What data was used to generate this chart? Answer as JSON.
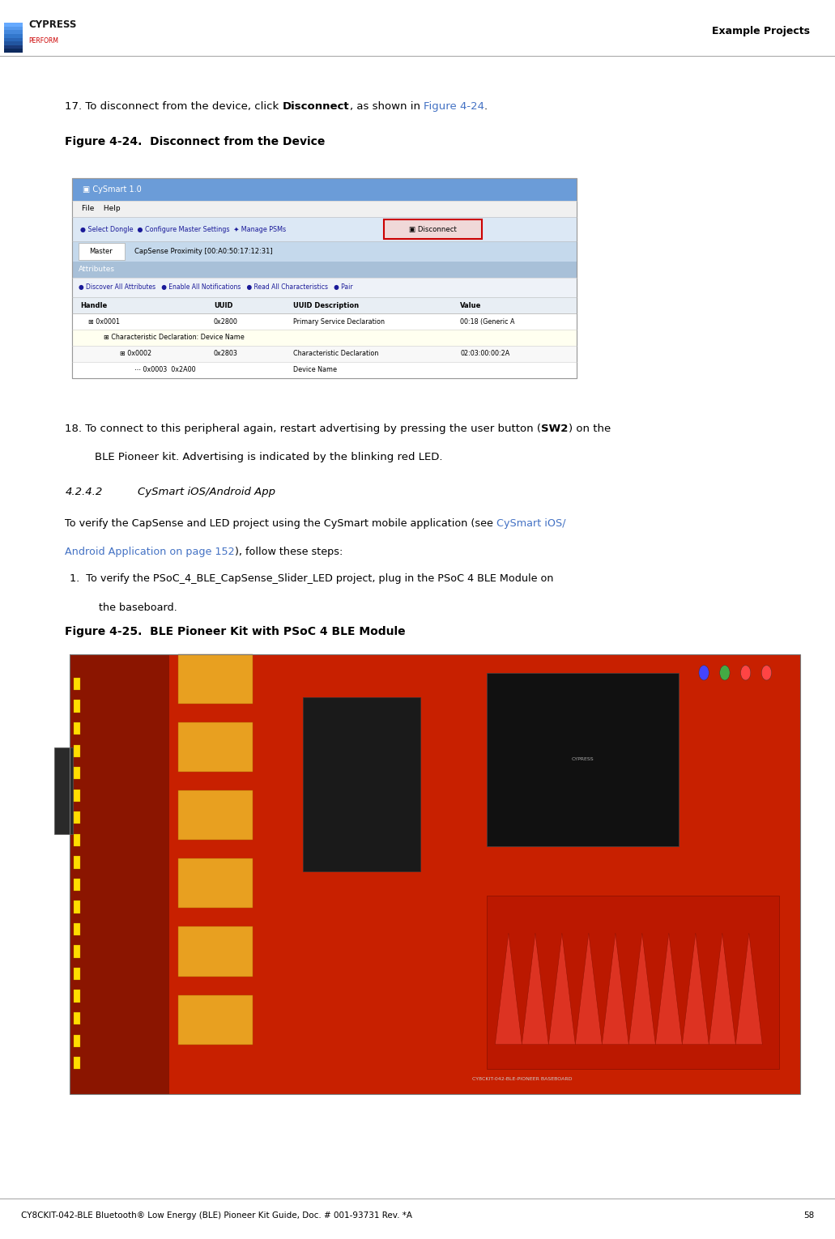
{
  "page_bg": "#ffffff",
  "header_right_text": "Example Projects",
  "footer_left_text": "CY8CKIT-042-BLE Bluetooth® Low Energy (BLE) Pioneer Kit Guide, Doc. # 001-93731 Rev. *A",
  "footer_right_text": "58",
  "text_color": "#000000",
  "link_color": "#4472c4",
  "body_font_size": 9.5,
  "section_label": "4.2.4.2",
  "section_title": "CySmart iOS/Android App",
  "fig424_caption": "Figure 4-24.  Disconnect from the Device",
  "fig425_caption": "Figure 4-25.  BLE Pioneer Kit with PSoC 4 BLE Module"
}
